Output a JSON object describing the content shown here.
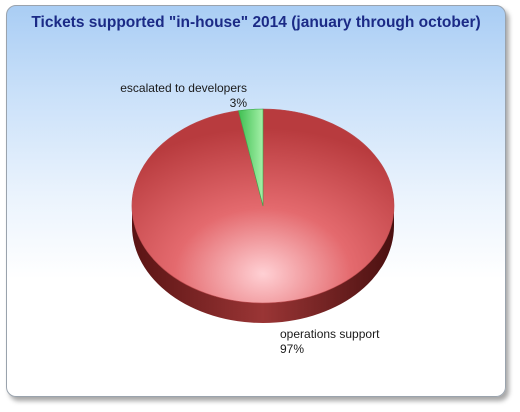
{
  "chart_data": {
    "type": "pie",
    "style": "3d",
    "title": "Tickets supported \"in-house\" 2014 (january through october)",
    "slices": [
      {
        "label": "operations support",
        "value": 97,
        "value_label": "97%",
        "color": "#d95b5b"
      },
      {
        "label": "escalated to developers",
        "value": 3,
        "value_label": "3%",
        "color": "#5fd36e"
      }
    ]
  }
}
